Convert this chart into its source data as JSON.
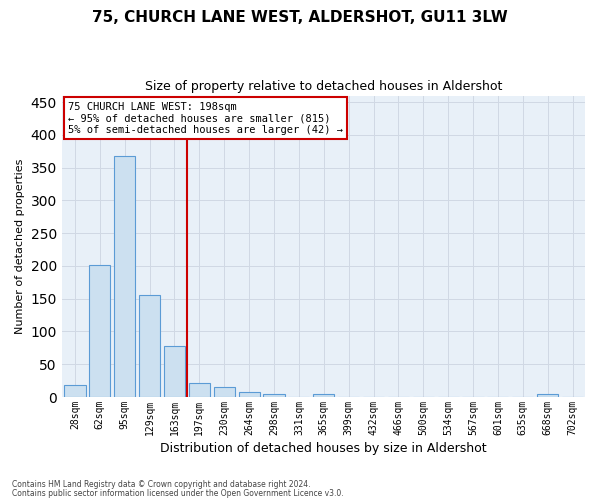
{
  "title1": "75, CHURCH LANE WEST, ALDERSHOT, GU11 3LW",
  "title2": "Size of property relative to detached houses in Aldershot",
  "xlabel": "Distribution of detached houses by size in Aldershot",
  "ylabel": "Number of detached properties",
  "bar_labels": [
    "28sqm",
    "62sqm",
    "95sqm",
    "129sqm",
    "163sqm",
    "197sqm",
    "230sqm",
    "264sqm",
    "298sqm",
    "331sqm",
    "365sqm",
    "399sqm",
    "432sqm",
    "466sqm",
    "500sqm",
    "534sqm",
    "567sqm",
    "601sqm",
    "635sqm",
    "668sqm",
    "702sqm"
  ],
  "bar_values": [
    18,
    202,
    368,
    155,
    78,
    21,
    15,
    8,
    5,
    0,
    5,
    0,
    0,
    0,
    0,
    0,
    0,
    0,
    0,
    5,
    0
  ],
  "bar_color": "#cce0f0",
  "bar_edge_color": "#5b9bd5",
  "grid_color": "#d0d8e4",
  "background_color": "#e8f0f8",
  "annotation_box_color": "#cc0000",
  "vline_color": "#cc0000",
  "annotation_lines": [
    "75 CHURCH LANE WEST: 198sqm",
    "← 95% of detached houses are smaller (815)",
    "5% of semi-detached houses are larger (42) →"
  ],
  "ylim": [
    0,
    460
  ],
  "yticks": [
    0,
    50,
    100,
    150,
    200,
    250,
    300,
    350,
    400,
    450
  ],
  "footer1": "Contains HM Land Registry data © Crown copyright and database right 2024.",
  "footer2": "Contains public sector information licensed under the Open Government Licence v3.0."
}
